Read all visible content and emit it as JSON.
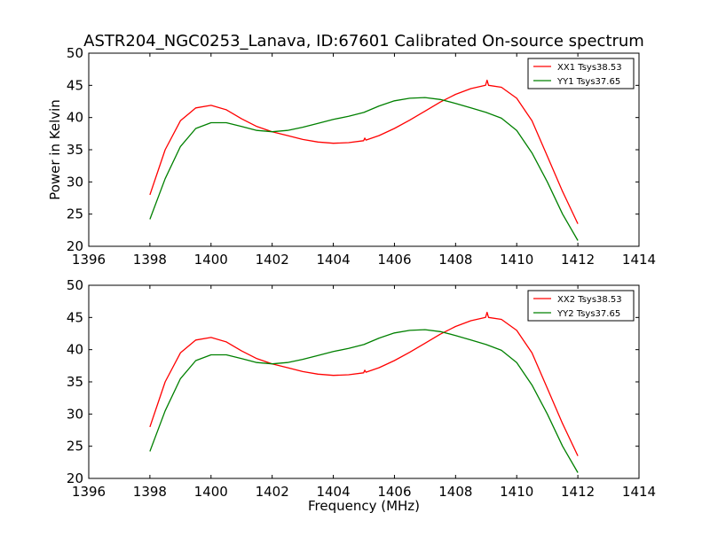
{
  "title": "ASTR204_NGC0253_Lanava, ID:67601 Calibrated On-source spectrum",
  "colors": {
    "red": "#ff0000",
    "green": "#008000"
  },
  "chart_data": [
    {
      "type": "line",
      "title": "ASTR204_NGC0253_Lanava, ID:67601 Calibrated On-source spectrum",
      "xlabel": "",
      "ylabel": "Power in Kelvin",
      "xlim": [
        1396,
        1414
      ],
      "ylim": [
        20,
        50
      ],
      "xticks": [
        1396,
        1398,
        1400,
        1402,
        1404,
        1406,
        1408,
        1410,
        1412,
        1414
      ],
      "yticks": [
        20,
        25,
        30,
        35,
        40,
        45,
        50
      ],
      "grid": false,
      "legend_position": "top-right",
      "series": [
        {
          "name": "XX1 Tsys38.53",
          "color": "#ff0000",
          "x": [
            1398.0,
            1398.5,
            1399.0,
            1399.5,
            1400.0,
            1400.5,
            1401.0,
            1401.5,
            1402.0,
            1402.5,
            1403.0,
            1403.5,
            1404.0,
            1404.5,
            1404.99,
            1405.03,
            1405.07,
            1405.5,
            1406.0,
            1406.5,
            1407.0,
            1407.5,
            1408.0,
            1408.5,
            1408.98,
            1409.03,
            1409.08,
            1409.5,
            1410.0,
            1410.5,
            1411.0,
            1411.5,
            1412.0
          ],
          "y": [
            28.0,
            35.0,
            39.5,
            41.5,
            41.9,
            41.2,
            39.8,
            38.6,
            37.8,
            37.2,
            36.6,
            36.2,
            36.0,
            36.1,
            36.4,
            36.8,
            36.5,
            37.2,
            38.3,
            39.6,
            41.0,
            42.4,
            43.6,
            44.5,
            45.0,
            45.8,
            45.0,
            44.7,
            43.0,
            39.5,
            34.0,
            28.5,
            23.5
          ]
        },
        {
          "name": "YY1 Tsys37.65",
          "color": "#008000",
          "x": [
            1398.0,
            1398.5,
            1399.0,
            1399.5,
            1400.0,
            1400.5,
            1401.0,
            1401.5,
            1402.0,
            1402.5,
            1403.0,
            1403.5,
            1404.0,
            1404.5,
            1405.0,
            1405.5,
            1406.0,
            1406.5,
            1407.0,
            1407.5,
            1408.0,
            1408.5,
            1409.0,
            1409.5,
            1410.0,
            1410.5,
            1411.0,
            1411.5,
            1412.0
          ],
          "y": [
            24.2,
            30.5,
            35.5,
            38.3,
            39.2,
            39.2,
            38.6,
            38.0,
            37.8,
            38.0,
            38.5,
            39.1,
            39.7,
            40.2,
            40.8,
            41.8,
            42.6,
            43.0,
            43.1,
            42.8,
            42.2,
            41.5,
            40.8,
            39.9,
            38.0,
            34.5,
            30.0,
            25.0,
            20.9
          ]
        }
      ]
    },
    {
      "type": "line",
      "title": "",
      "xlabel": "Frequency (MHz)",
      "ylabel": "",
      "xlim": [
        1396,
        1414
      ],
      "ylim": [
        20,
        50
      ],
      "xticks": [
        1396,
        1398,
        1400,
        1402,
        1404,
        1406,
        1408,
        1410,
        1412,
        1414
      ],
      "yticks": [
        20,
        25,
        30,
        35,
        40,
        45,
        50
      ],
      "grid": false,
      "legend_position": "top-right",
      "series": [
        {
          "name": "XX2 Tsys38.53",
          "color": "#ff0000",
          "x": [
            1398.0,
            1398.5,
            1399.0,
            1399.5,
            1400.0,
            1400.5,
            1401.0,
            1401.5,
            1402.0,
            1402.5,
            1403.0,
            1403.5,
            1404.0,
            1404.5,
            1404.99,
            1405.03,
            1405.07,
            1405.5,
            1406.0,
            1406.5,
            1407.0,
            1407.5,
            1408.0,
            1408.5,
            1408.98,
            1409.03,
            1409.08,
            1409.5,
            1410.0,
            1410.5,
            1411.0,
            1411.5,
            1412.0
          ],
          "y": [
            28.0,
            35.0,
            39.5,
            41.5,
            41.9,
            41.2,
            39.8,
            38.6,
            37.8,
            37.2,
            36.6,
            36.2,
            36.0,
            36.1,
            36.4,
            36.8,
            36.5,
            37.2,
            38.3,
            39.6,
            41.0,
            42.4,
            43.6,
            44.5,
            45.0,
            45.8,
            45.0,
            44.7,
            43.0,
            39.5,
            34.0,
            28.5,
            23.5
          ]
        },
        {
          "name": "YY2 Tsys37.65",
          "color": "#008000",
          "x": [
            1398.0,
            1398.5,
            1399.0,
            1399.5,
            1400.0,
            1400.5,
            1401.0,
            1401.5,
            1402.0,
            1402.5,
            1403.0,
            1403.5,
            1404.0,
            1404.5,
            1405.0,
            1405.5,
            1406.0,
            1406.5,
            1407.0,
            1407.5,
            1408.0,
            1408.5,
            1409.0,
            1409.5,
            1410.0,
            1410.5,
            1411.0,
            1411.5,
            1412.0
          ],
          "y": [
            24.2,
            30.5,
            35.5,
            38.3,
            39.2,
            39.2,
            38.6,
            38.0,
            37.8,
            38.0,
            38.5,
            39.1,
            39.7,
            40.2,
            40.8,
            41.8,
            42.6,
            43.0,
            43.1,
            42.8,
            42.2,
            41.5,
            40.8,
            39.9,
            38.0,
            34.5,
            30.0,
            25.0,
            20.9
          ]
        }
      ]
    }
  ]
}
